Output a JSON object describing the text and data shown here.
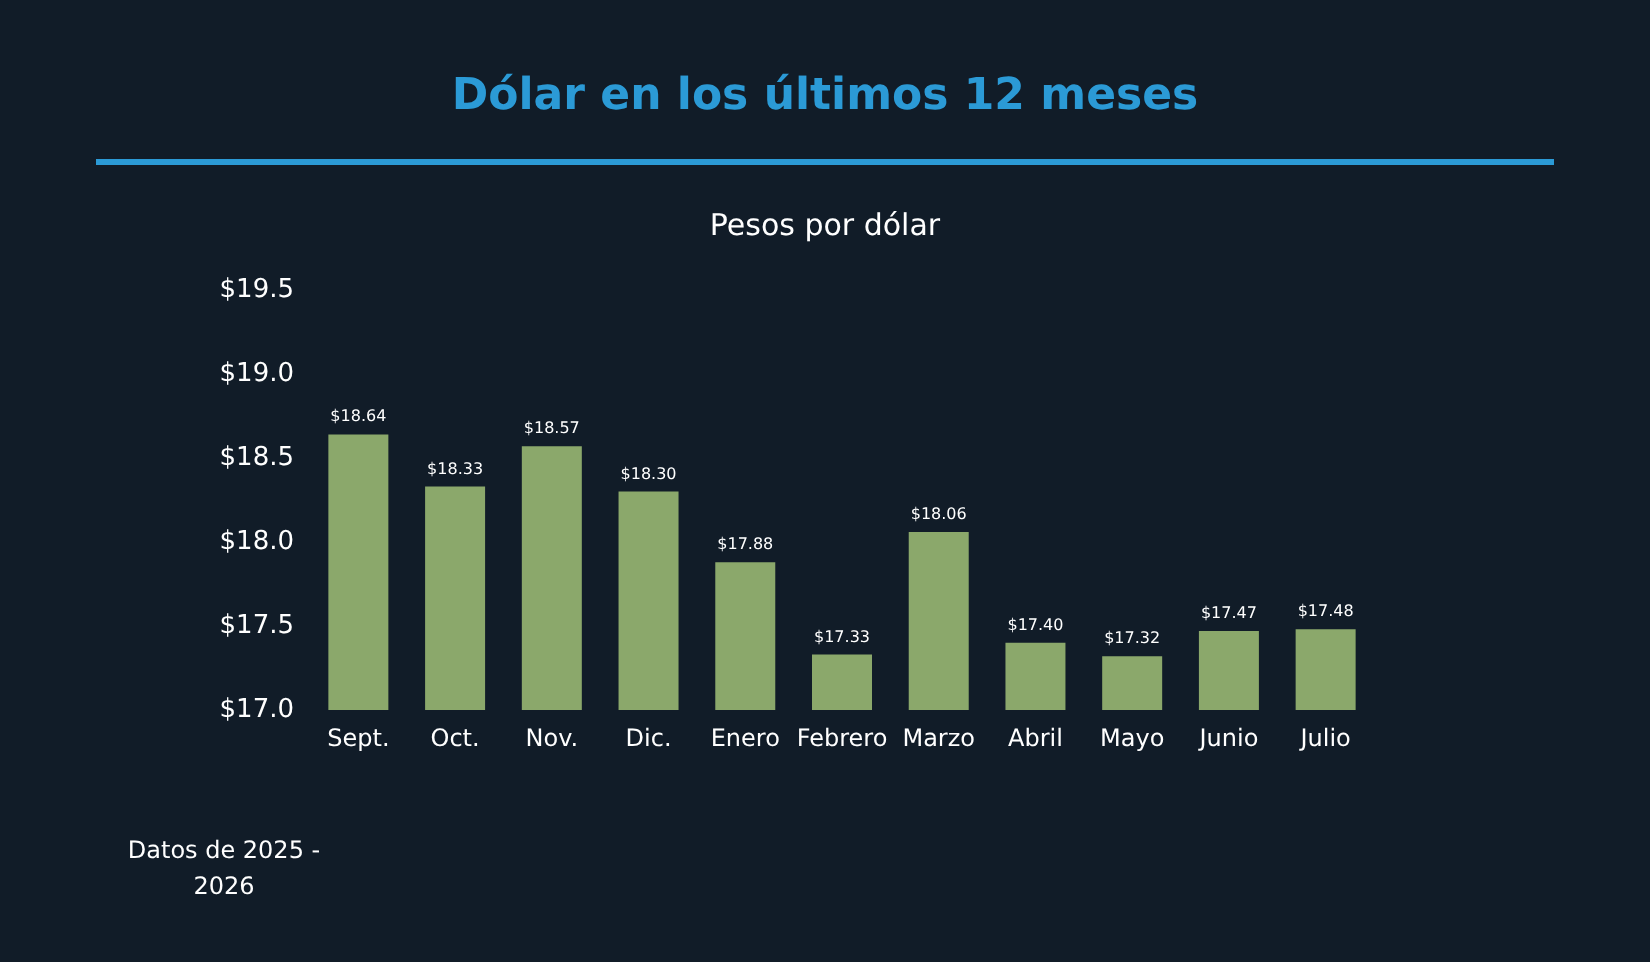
{
  "chart_data": {
    "type": "bar",
    "title": "Dólar en los últimos 12 meses",
    "subtitle": "Pesos por dólar",
    "categories": [
      "Sept.",
      "Oct.",
      "Nov.",
      "Dic.",
      "Enero",
      "Febrero",
      "Marzo",
      "Abril",
      "Mayo",
      "Junio",
      "Julio"
    ],
    "values": [
      18.64,
      18.33,
      18.57,
      18.3,
      17.88,
      17.33,
      18.06,
      17.4,
      17.32,
      17.47,
      17.48
    ],
    "value_labels": [
      "$18.64",
      "$18.33",
      "$18.57",
      "$18.30",
      "$17.88",
      "$17.33",
      "$18.06",
      "$17.40",
      "$17.32",
      "$17.47",
      "$17.48"
    ],
    "color": "#8ba86b",
    "ylim": [
      17,
      19.5
    ],
    "yticks": [
      {
        "value": 17,
        "label": "$17.0"
      },
      {
        "value": 17.5,
        "label": "$17.5"
      },
      {
        "value": 18,
        "label": "$18.0"
      },
      {
        "value": 18.5,
        "label": "$18.5"
      },
      {
        "value": 19,
        "label": "$19.0"
      },
      {
        "value": 19.5,
        "label": "$19.5"
      }
    ],
    "grid": false,
    "annotations": [
      "Datos de 2025 -\n2026"
    ]
  }
}
